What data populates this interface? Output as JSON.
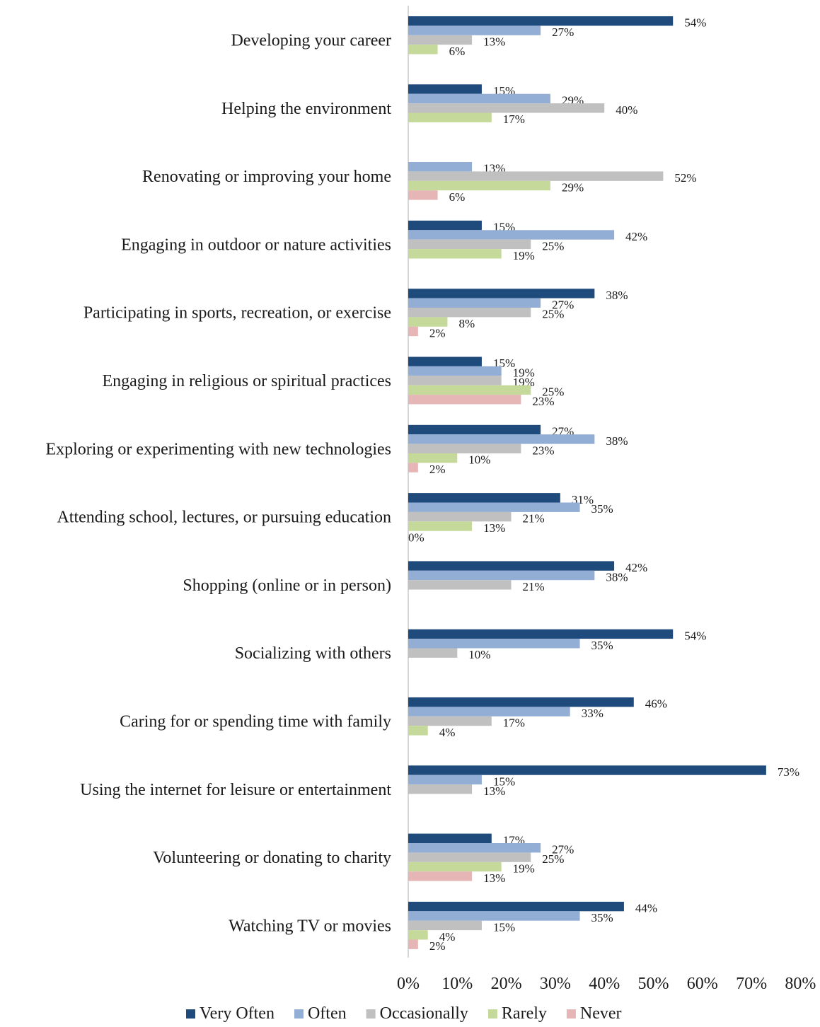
{
  "chart_data": {
    "type": "bar",
    "orientation": "horizontal",
    "categories": [
      "Developing your career",
      "Helping the environment",
      "Renovating or improving your home",
      "Engaging in outdoor or nature activities",
      "Participating in sports, recreation, or exercise",
      "Engaging in religious or spiritual practices",
      "Exploring or experimenting with new technologies",
      "Attending school, lectures, or pursuing education",
      "Shopping (online or in person)",
      "Socializing with others",
      "Caring for or spending time with family",
      "Using the internet for leisure or entertainment",
      "Volunteering or donating to charity",
      "Watching TV or movies"
    ],
    "series": [
      {
        "name": "Very Often",
        "color": "#1f4a7c",
        "values": [
          54,
          15,
          null,
          15,
          38,
          15,
          27,
          31,
          42,
          54,
          46,
          73,
          17,
          44
        ],
        "labels": [
          "54%",
          "15%",
          null,
          "15%",
          "38%",
          "15%",
          "27%",
          "31%",
          "42%",
          "54%",
          "46%",
          "73%",
          "17%",
          "44%"
        ]
      },
      {
        "name": "Often",
        "color": "#93aed5",
        "values": [
          27,
          29,
          13,
          42,
          27,
          19,
          38,
          35,
          38,
          35,
          33,
          15,
          27,
          35
        ],
        "labels": [
          "27%",
          "29%",
          "13%",
          "42%",
          "27%",
          "19%",
          "38%",
          "35%",
          "38%",
          "35%",
          "33%",
          "15%",
          "27%",
          "35%"
        ]
      },
      {
        "name": "Occasionally",
        "color": "#c0c0c0",
        "values": [
          13,
          40,
          52,
          25,
          25,
          19,
          23,
          21,
          21,
          10,
          17,
          13,
          25,
          15
        ],
        "labels": [
          "13%",
          "40%",
          "52%",
          "25%",
          "25%",
          "19%",
          "23%",
          "21%",
          "21%",
          "10%",
          "17%",
          "13%",
          "25%",
          "15%"
        ]
      },
      {
        "name": "Rarely",
        "color": "#c5d99a",
        "values": [
          6,
          17,
          29,
          19,
          8,
          25,
          10,
          13,
          null,
          null,
          4,
          null,
          19,
          4
        ],
        "labels": [
          "6%",
          "17%",
          "29%",
          "19%",
          "8%",
          "25%",
          "10%",
          "13%",
          null,
          null,
          "4%",
          null,
          "19%",
          "4%"
        ]
      },
      {
        "name": "Never",
        "color": "#e6b6b6",
        "values": [
          null,
          null,
          6,
          null,
          2,
          23,
          2,
          0,
          null,
          null,
          null,
          null,
          13,
          2
        ],
        "labels": [
          null,
          null,
          "6%",
          null,
          "2%",
          "23%",
          "2%",
          "0%",
          null,
          null,
          null,
          null,
          "13%",
          "2%"
        ]
      }
    ],
    "xlim": [
      0,
      80
    ],
    "x_ticks": [
      "0%",
      "10%",
      "20%",
      "30%",
      "40%",
      "50%",
      "60%",
      "70%",
      "80%"
    ],
    "grid": false,
    "legend_position": "bottom",
    "title": "",
    "xlabel": "",
    "ylabel": ""
  }
}
